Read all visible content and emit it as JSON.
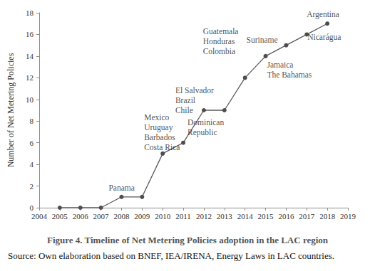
{
  "chart_data": {
    "type": "line",
    "title": "Figure 4. Timeline of Net Metering Policies adoption in the LAC region",
    "subtitle": "Source: Own elaboration based on BNEF, IEA/IRENA, Energy Laws in LAC countries.",
    "y_label": "Number of Net Metering Policies",
    "x": [
      2005,
      2006,
      2007,
      2008,
      2009,
      2010,
      2011,
      2012,
      2013,
      2014,
      2015,
      2016,
      2017,
      2018
    ],
    "values": [
      0,
      0,
      0,
      1,
      1,
      5,
      6,
      9,
      9,
      12,
      14,
      15,
      16,
      17
    ],
    "color": "#595959",
    "marker": "circle",
    "grid": false,
    "xlim": [
      2004,
      2019
    ],
    "xticks": [
      2004,
      2005,
      2006,
      2007,
      2008,
      2009,
      2010,
      2011,
      2012,
      2013,
      2014,
      2015,
      2016,
      2017,
      2018,
      2019
    ],
    "ylim": [
      0,
      18
    ],
    "yticks": [
      0,
      2,
      4,
      6,
      8,
      10,
      12,
      14,
      16,
      18
    ],
    "annotations": [
      {
        "x": 2008,
        "text": [
          "Panama"
        ]
      },
      {
        "x": 2010,
        "text": [
          "Mexico",
          "Uruguay",
          "Barbados",
          "Costa Rica"
        ]
      },
      {
        "x": 2011,
        "text": [
          "Dominican",
          "Republic"
        ]
      },
      {
        "x": 2012,
        "text": [
          "El Salvador",
          "Brazil",
          "Chile"
        ]
      },
      {
        "x": 2014,
        "text": [
          "Guatemala",
          "Honduras",
          "Colombia"
        ]
      },
      {
        "x": 2015,
        "text": [
          "Suriname"
        ]
      },
      {
        "x": 2016,
        "text": [
          "Jamaica",
          "The Bahamas"
        ]
      },
      {
        "x": 2018,
        "text": [
          "Argentina"
        ]
      },
      {
        "x": 2018,
        "text": [
          "Nicarágua"
        ]
      }
    ]
  }
}
